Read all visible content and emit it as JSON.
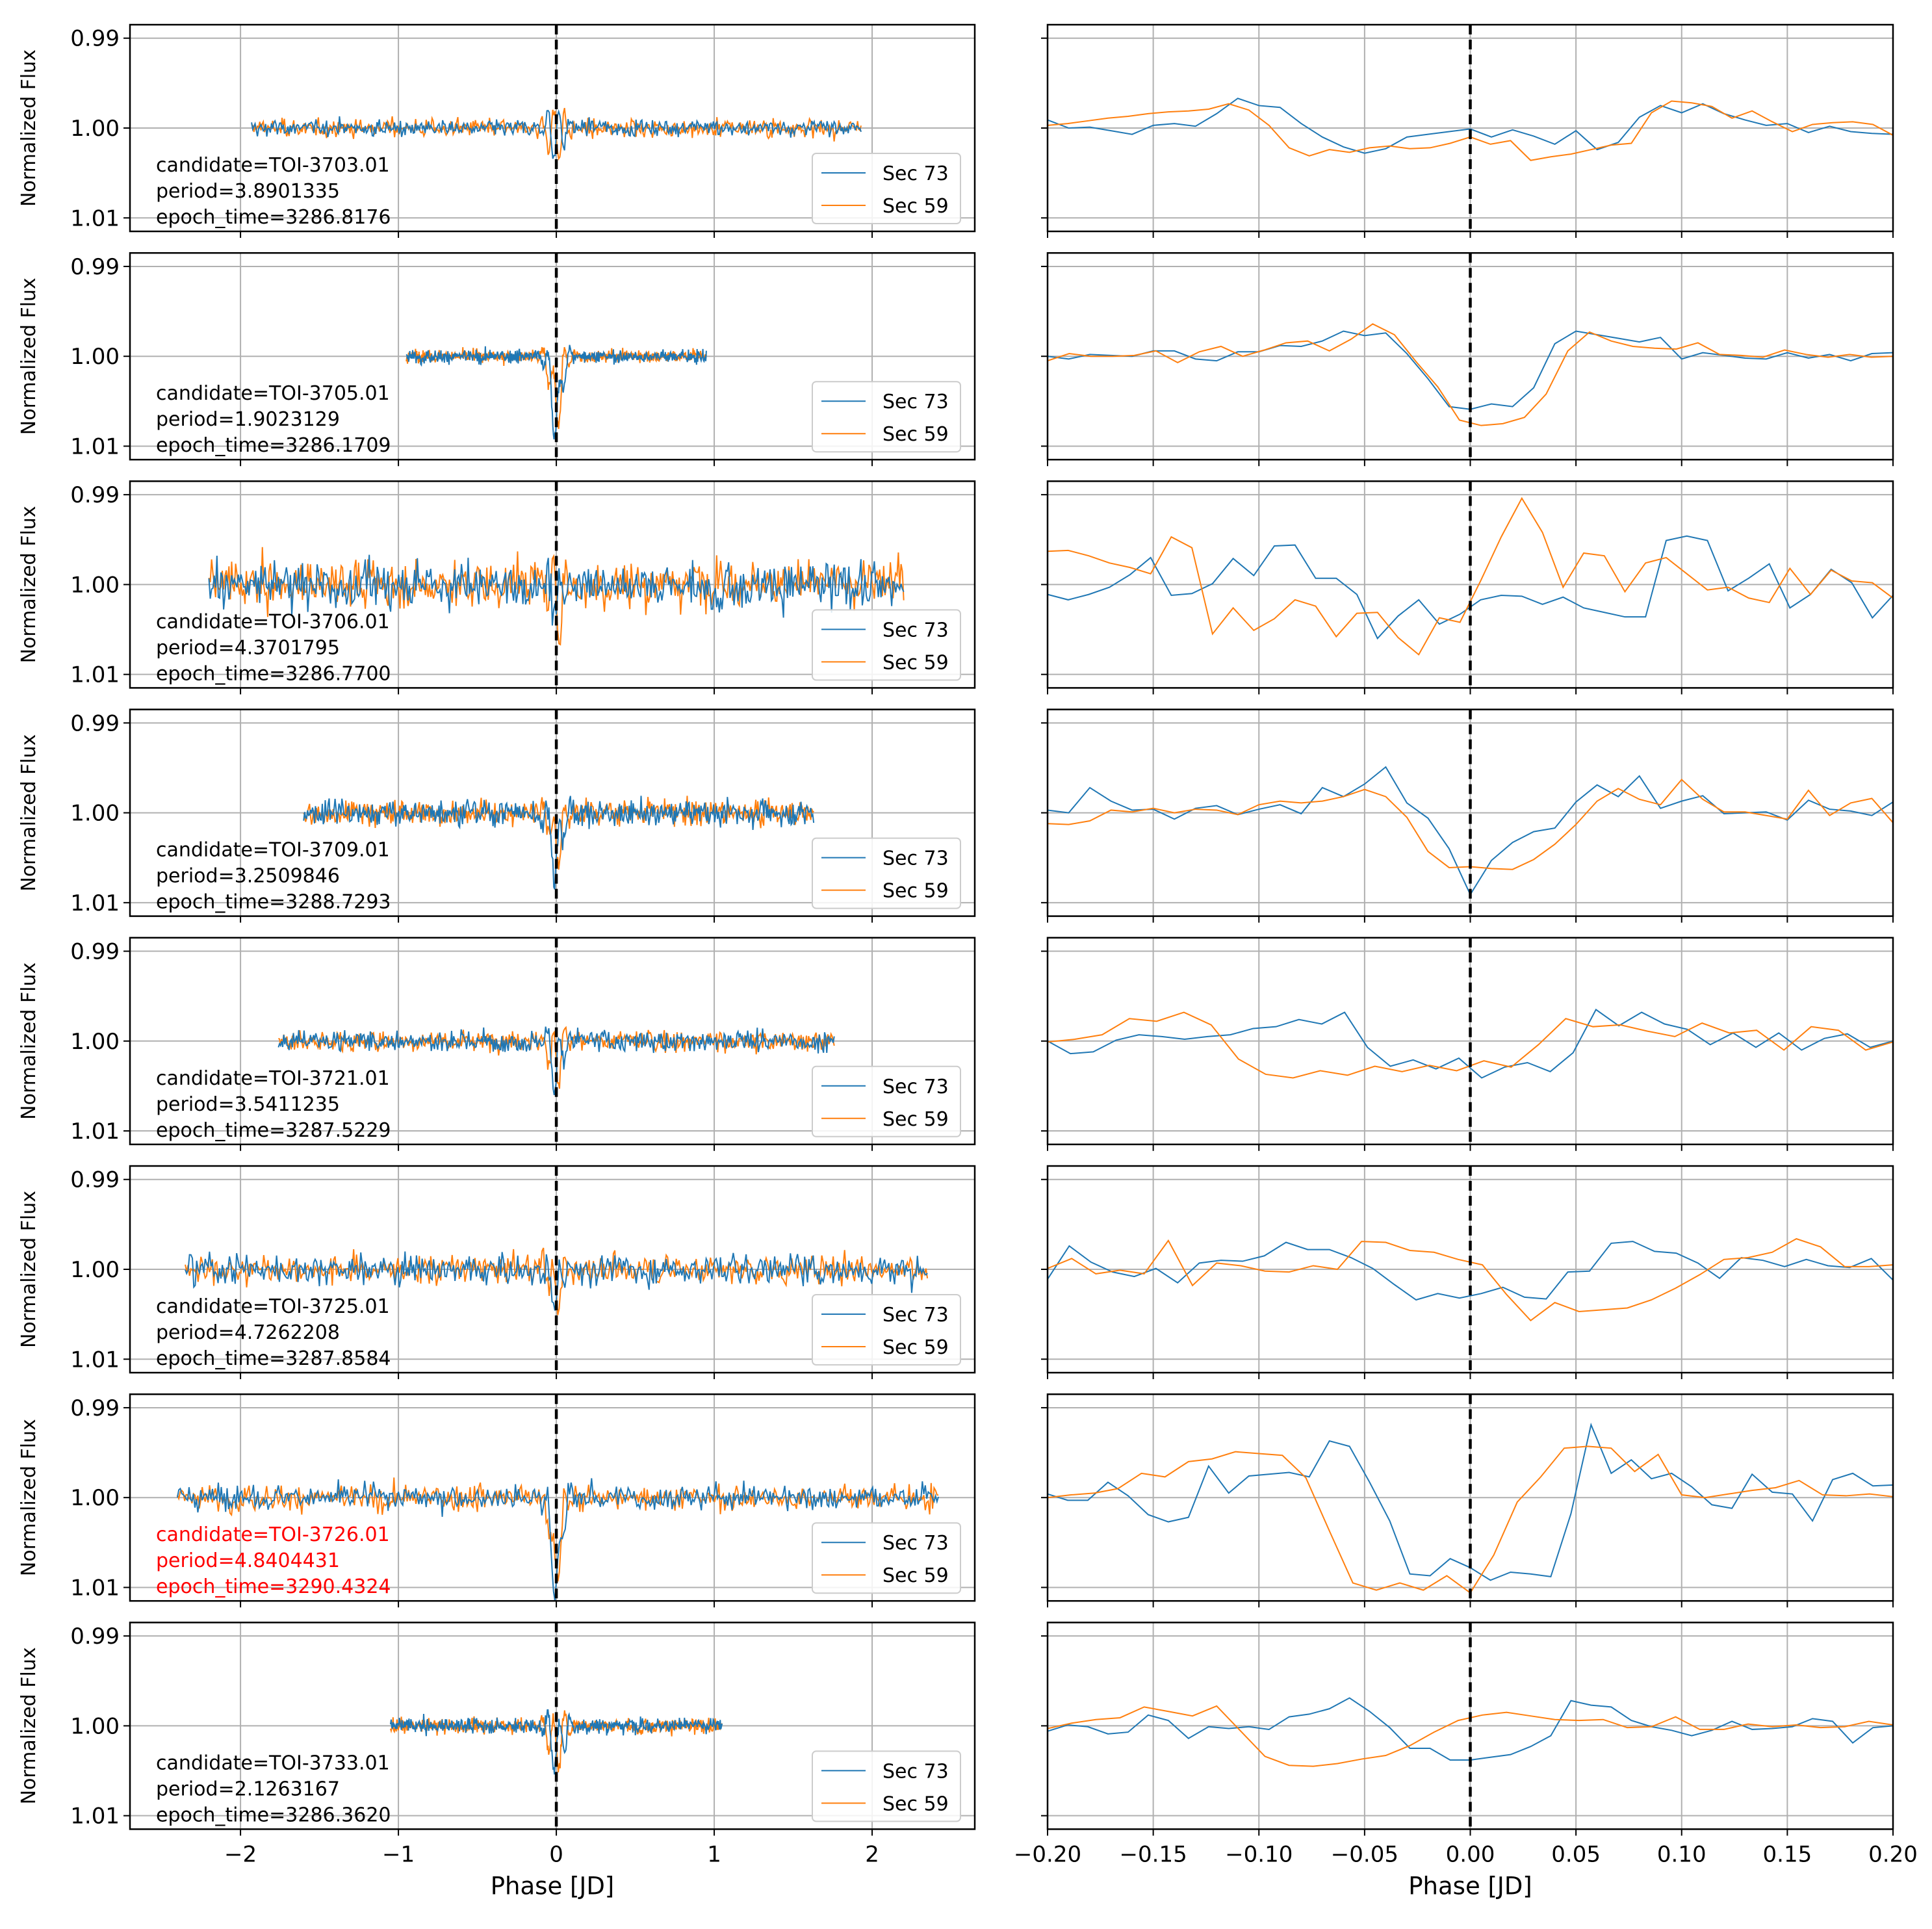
{
  "figure": {
    "xlabel_left": "Phase [JD]",
    "xlabel_right": "Phase [JD]",
    "ylabel": "Normalized Flux",
    "left_xticks": [
      "−2",
      "−1",
      "0",
      "1",
      "2"
    ],
    "right_xticks": [
      "−0.20",
      "−0.15",
      "−0.10",
      "−0.05",
      "0.00",
      "0.05",
      "0.10",
      "0.15",
      "0.20"
    ],
    "yticks": [
      "1.01",
      "1.00",
      "0.99"
    ],
    "colors": {
      "sec73": "#1f77b4",
      "sec59": "#ff7f0e",
      "highlight": "#ff0000",
      "grid": "#b0b0b0"
    }
  },
  "chart_data": {
    "type": "line",
    "layout": "8 rows x 2 columns of phase-folded light curves",
    "left_xlim": [
      -2.7,
      2.65
    ],
    "right_xlim": [
      -0.2,
      0.2
    ],
    "ylim": [
      0.9885,
      1.0115
    ],
    "yticks": [
      0.99,
      1.0,
      1.01
    ],
    "left_xticks": [
      -2,
      -1,
      0,
      1,
      2
    ],
    "right_xticks": [
      -0.2,
      -0.15,
      -0.1,
      -0.05,
      0.0,
      0.05,
      0.1,
      0.15,
      0.2
    ],
    "xlabel": "Phase [JD]",
    "ylabel": "Normalized Flux",
    "grid": true,
    "vline": {
      "x": 0,
      "style": "dashed",
      "color": "#000000"
    },
    "legend": [
      "Sec 73",
      "Sec 59"
    ],
    "legend_placement": "lower right of each left panel",
    "panels": [
      {
        "candidate": "candidate=TOI-3703.01",
        "period": "period=3.8901335",
        "epoch": "epoch_time=3286.8176",
        "highlight": false,
        "left_range": [
          -1.93,
          1.93
        ],
        "noise": 0.0008,
        "depth": 0.001,
        "zoom_sec73": [
          1.0009,
          1.0,
          1.0001,
          0.9997,
          0.9993,
          1.0003,
          1.0005,
          1.0002,
          1.0016,
          1.0033,
          1.0025,
          1.0023,
          1.0005,
          0.999,
          0.9979,
          0.9972,
          0.9977,
          0.999,
          0.9993,
          0.9996,
          0.9999,
          0.999,
          0.9998,
          0.9991,
          0.9982,
          0.9997,
          0.9976,
          0.9984,
          1.0012,
          1.0025,
          1.0017,
          1.0027,
          1.0016,
          1.0009,
          1.0003,
          1.0005,
          0.9995,
          1.0002,
          0.9996,
          0.9994,
          0.9993
        ],
        "zoom_sec59": [
          1.0003,
          1.0005,
          1.0008,
          1.0011,
          1.0013,
          1.0016,
          1.0018,
          1.0019,
          1.0021,
          1.0027,
          1.002,
          1.0003,
          0.9978,
          0.9969,
          0.9976,
          0.9973,
          0.9978,
          0.998,
          0.9977,
          0.9978,
          0.9983,
          0.999,
          0.9982,
          0.9986,
          0.9964,
          0.9968,
          0.9971,
          0.9976,
          0.9981,
          0.9983,
          1.0017,
          1.003,
          1.0028,
          1.0024,
          1.0011,
          1.0019,
          1.0007,
          0.9996,
          1.0004,
          1.0006,
          1.0007,
          1.0004,
          0.9992
        ]
      },
      {
        "candidate": "candidate=TOI-3705.01",
        "period": "period=1.9023129",
        "epoch": "epoch_time=3286.1709",
        "highlight": false,
        "left_range": [
          -0.95,
          0.95
        ],
        "noise": 0.0006,
        "depth": 0.007,
        "zoom_sec73": [
          1.0,
          0.9997,
          1.0002,
          1.0001,
          1.0,
          1.0006,
          1.0006,
          0.9997,
          0.9995,
          1.0005,
          1.0005,
          1.0012,
          1.0011,
          1.0017,
          1.0028,
          1.0023,
          1.0026,
          1.0003,
          0.9975,
          0.9944,
          0.9941,
          0.9947,
          0.9944,
          0.9965,
          1.0014,
          1.0028,
          1.0024,
          1.002,
          1.0016,
          1.0021,
          0.9997,
          1.0004,
          1.0001,
          0.9998,
          0.9997,
          1.0004,
          0.9998,
          1.0002,
          0.9995,
          1.0003,
          1.0004
        ],
        "zoom_sec59": [
          0.9995,
          1.0003,
          1.0,
          1.0,
          1.0001,
          1.0006,
          0.9993,
          1.0005,
          1.0011,
          1.0,
          1.0007,
          1.0015,
          1.0017,
          1.0006,
          1.0019,
          1.0036,
          1.0024,
          0.9994,
          0.9966,
          0.9929,
          0.9923,
          0.9925,
          0.9932,
          0.9958,
          1.0006,
          1.0027,
          1.0017,
          1.0011,
          1.0009,
          1.0008,
          1.0015,
          1.0002,
          1.0001,
          0.9999,
          1.0007,
          1.0002,
          0.9999,
          1.0002,
          0.9999,
          1.0
        ]
      },
      {
        "candidate": "candidate=TOI-3706.01",
        "period": "period=4.3701795",
        "epoch": "epoch_time=3286.7700",
        "highlight": false,
        "left_range": [
          -2.2,
          2.2
        ],
        "noise": 0.0022,
        "depth": 0.002,
        "zoom_sec73": [
          0.9989,
          0.9983,
          0.9989,
          0.9997,
          1.0011,
          1.003,
          0.9988,
          0.999,
          1.0001,
          1.0029,
          1.001,
          1.0043,
          1.0044,
          1.0007,
          1.0007,
          0.9989,
          0.994,
          0.9965,
          0.9983,
          0.9956,
          0.9967,
          0.9983,
          0.9988,
          0.9987,
          0.9978,
          0.9986,
          0.9974,
          0.9969,
          0.9964,
          0.9964,
          1.0049,
          1.0054,
          1.0049,
          0.9993,
          1.0007,
          1.0023,
          0.9974,
          0.9989,
          1.0017,
          1.0002,
          0.9963,
          0.9988
        ],
        "zoom_sec59": [
          1.0037,
          1.0038,
          1.0032,
          1.0024,
          1.0019,
          1.0012,
          1.0053,
          1.0041,
          0.9945,
          0.9974,
          0.9949,
          0.9962,
          0.9983,
          0.9976,
          0.9942,
          0.9968,
          0.9969,
          0.9941,
          0.9922,
          0.9963,
          0.9958,
          1.0004,
          1.0053,
          1.0096,
          1.0058,
          0.9997,
          1.0035,
          1.0032,
          0.9992,
          1.0024,
          1.003,
          1.0012,
          0.9994,
          0.9997,
          0.9985,
          0.998,
          1.0018,
          0.9989,
          1.0016,
          1.0004,
          1.0002,
          0.9985
        ]
      },
      {
        "candidate": "candidate=TOI-3709.01",
        "period": "period=3.2509846",
        "epoch": "epoch_time=3288.7293",
        "highlight": false,
        "left_range": [
          -1.6,
          1.63
        ],
        "noise": 0.0012,
        "depth": 0.005,
        "zoom_sec73": [
          1.0003,
          1.0,
          1.0028,
          1.0013,
          1.0003,
          1.0004,
          0.9993,
          1.0005,
          1.0008,
          0.9998,
          1.0004,
          1.0009,
          0.9999,
          1.0028,
          1.0018,
          1.0032,
          1.0051,
          1.0011,
          0.9994,
          0.996,
          0.9909,
          0.9947,
          0.9967,
          0.9979,
          0.9983,
          1.0012,
          1.0031,
          1.0018,
          1.0041,
          1.0005,
          1.0013,
          1.0019,
          0.9999,
          1.0,
          1.0001,
          0.9992,
          1.0014,
          1.0004,
          1.0002,
          0.9997,
          1.0012
        ],
        "zoom_sec59": [
          0.9988,
          0.9987,
          0.9991,
          1.0003,
          1.0001,
          1.0005,
          1.0,
          1.0004,
          1.0003,
          0.9998,
          1.0009,
          1.0013,
          1.0011,
          1.0013,
          1.0018,
          1.0026,
          1.0018,
          0.9995,
          0.9957,
          0.9939,
          0.994,
          0.9938,
          0.9937,
          0.9948,
          0.9965,
          0.9987,
          1.0013,
          1.0027,
          1.0015,
          1.0009,
          1.0037,
          1.0015,
          1.0001,
          1.0001,
          0.9997,
          0.9993,
          1.0025,
          0.9997,
          1.0011,
          1.0016,
          0.9989
        ]
      },
      {
        "candidate": "candidate=TOI-3721.01",
        "period": "period=3.5411235",
        "epoch": "epoch_time=3287.5229",
        "highlight": false,
        "left_range": [
          -1.76,
          1.76
        ],
        "noise": 0.001,
        "depth": 0.003,
        "zoom_sec73": [
          1.0,
          0.9986,
          0.9988,
          1.0001,
          1.0007,
          1.0005,
          1.0002,
          1.0005,
          1.0007,
          1.0014,
          1.0016,
          1.0024,
          1.0019,
          1.0032,
          0.9993,
          0.9972,
          0.9979,
          0.9969,
          0.9981,
          0.9959,
          0.9971,
          0.9976,
          0.9966,
          0.9987,
          1.0035,
          1.0017,
          1.0032,
          1.0019,
          1.0013,
          0.9996,
          1.0009,
          0.9993,
          1.0009,
          0.999,
          1.0003,
          1.0008,
          0.9993,
          1.0
        ],
        "zoom_sec59": [
          0.9999,
          1.0002,
          1.0007,
          1.0025,
          1.0022,
          1.0032,
          1.0018,
          0.998,
          0.9963,
          0.9959,
          0.9967,
          0.9962,
          0.9972,
          0.9966,
          0.9973,
          0.9967,
          0.9978,
          0.9971,
          0.9996,
          1.0025,
          1.0016,
          1.0018,
          1.0011,
          1.0005,
          1.002,
          1.0009,
          1.0012,
          0.999,
          1.0016,
          1.0012,
          0.999,
          0.9999
        ]
      },
      {
        "candidate": "candidate=TOI-3725.01",
        "period": "period=4.7262208",
        "epoch": "epoch_time=3287.8584",
        "highlight": false,
        "left_range": [
          -2.35,
          2.35
        ],
        "noise": 0.0014,
        "depth": 0.003,
        "zoom_sec73": [
          0.9989,
          1.0026,
          1.0008,
          0.9997,
          0.9992,
          1.0001,
          0.9985,
          1.0007,
          1.001,
          1.0009,
          1.0015,
          1.003,
          1.0022,
          1.0022,
          1.0013,
          1.0001,
          0.9983,
          0.9966,
          0.9973,
          0.9968,
          0.9973,
          0.998,
          0.9969,
          0.9967,
          0.9997,
          0.9998,
          1.0029,
          1.0031,
          1.002,
          1.0018,
          1.0007,
          0.999,
          1.0013,
          1.001,
          1.0003,
          1.0011,
          1.0004,
          1.0002,
          1.0012,
          0.9988
        ],
        "zoom_sec59": [
          1.0001,
          1.0012,
          0.9995,
          0.9999,
          0.9995,
          1.0032,
          0.9982,
          1.0007,
          1.0004,
          0.9998,
          0.9997,
          1.0004,
          1.0,
          1.0031,
          1.003,
          1.0021,
          1.0019,
          1.0011,
          1.0005,
          0.9972,
          0.9943,
          0.9963,
          0.9953,
          0.9955,
          0.9957,
          0.9966,
          0.9979,
          0.9994,
          1.0011,
          1.0013,
          1.0019,
          1.0034,
          1.0025,
          1.0003,
          1.0003,
          1.0005
        ]
      },
      {
        "candidate": "candidate=TOI-3726.01",
        "period": "period=4.8404431",
        "epoch": "epoch_time=3290.4324",
        "highlight": true,
        "left_range": [
          -2.4,
          2.42
        ],
        "noise": 0.0012,
        "depth": 0.01,
        "zoom_sec73": [
          1.0004,
          0.9997,
          0.9997,
          1.0017,
          1.0002,
          0.9981,
          0.9973,
          0.9978,
          1.0035,
          1.0005,
          1.0024,
          1.0026,
          1.0028,
          1.0023,
          1.0063,
          1.0057,
          1.0017,
          0.9974,
          0.9915,
          0.9913,
          0.9932,
          0.9922,
          0.9908,
          0.9917,
          0.9915,
          0.9912,
          0.9982,
          1.0081,
          1.0027,
          1.0042,
          1.0021,
          1.0027,
          1.0012,
          0.9992,
          0.9988,
          1.0026,
          1.0006,
          1.0004,
          0.9974,
          1.002,
          1.0027,
          1.0013,
          1.0014
        ],
        "zoom_sec59": [
          1.0,
          1.0003,
          1.0005,
          1.001,
          1.0027,
          1.0023,
          1.004,
          1.0043,
          1.0051,
          1.0049,
          1.0047,
          1.0022,
          0.9963,
          0.9905,
          0.9897,
          0.9905,
          0.9897,
          0.9913,
          0.9894,
          0.9936,
          0.9995,
          1.0023,
          1.0055,
          1.0057,
          1.0055,
          1.0029,
          1.0048,
          1.0003,
          1.0,
          1.0004,
          1.0008,
          1.0011,
          1.0019,
          1.0003,
          1.0002,
          1.0004,
          1.0001
        ]
      },
      {
        "candidate": "candidate=TOI-3733.01",
        "period": "period=2.1263167",
        "epoch": "epoch_time=3286.3620",
        "highlight": false,
        "left_range": [
          -1.05,
          1.05
        ],
        "noise": 0.0007,
        "depth": 0.003,
        "zoom_sec73": [
          0.9994,
          1.0001,
          0.9999,
          0.9991,
          0.9993,
          1.0012,
          1.0006,
          0.9986,
          0.9999,
          0.9997,
          0.9999,
          0.9996,
          1.001,
          1.0013,
          1.0019,
          1.0031,
          1.0016,
          0.9998,
          0.9975,
          0.9975,
          0.9962,
          0.9962,
          0.9965,
          0.9968,
          0.9977,
          0.9989,
          1.0028,
          1.0023,
          1.0021,
          1.0006,
          0.9999,
          0.9995,
          0.9989,
          0.9995,
          1.0005,
          0.9996,
          0.9997,
          0.9999,
          1.0008,
          1.0005,
          0.9981,
          0.9998,
          1.0
        ],
        "zoom_sec59": [
          0.9997,
          1.0003,
          1.0007,
          1.0009,
          1.0021,
          1.0016,
          1.0011,
          1.0022,
          0.9994,
          0.9966,
          0.9956,
          0.9955,
          0.9958,
          0.9963,
          0.9967,
          0.9978,
          0.9993,
          1.0006,
          1.0012,
          1.0015,
          1.0011,
          1.0007,
          1.0006,
          1.0007,
          0.9998,
          0.9999,
          1.001,
          0.9996,
          0.9996,
          1.0002,
          0.9999,
          1.0001,
          0.9998,
          0.9999,
          1.0005,
          1.0001
        ]
      }
    ]
  }
}
